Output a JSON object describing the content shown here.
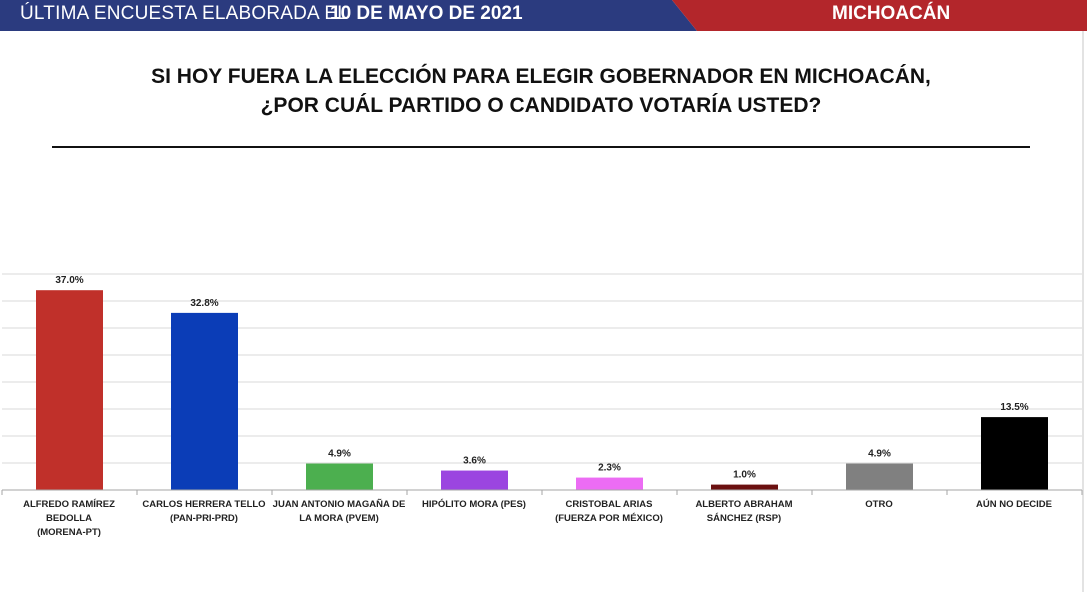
{
  "banner": {
    "label": "ÚLTIMA ENCUESTA ELABORADA EL",
    "date": "10 DE MAYO DE 2021",
    "region": "MICHOACÁN",
    "colors": {
      "blue": "#2b3b7f",
      "red": "#b3262b"
    }
  },
  "title": {
    "line1": "SI HOY FUERA LA ELECCIÓN PARA ELEGIR GOBERNADOR EN MICHOACÁN,",
    "line2": "¿POR CUÁL PARTIDO O CANDIDATO VOTARÍA USTED?"
  },
  "chart_data": {
    "type": "bar",
    "title": "SI HOY FUERA LA ELECCIÓN PARA ELEGIR GOBERNADOR EN MICHOACÁN, ¿POR CUÁL PARTIDO O CANDIDATO VOTARÍA USTED?",
    "categories": [
      {
        "line1": "ALFREDO RAMÍREZ BEDOLLA",
        "line2": "(MORENA-PT)"
      },
      {
        "line1": "CARLOS HERRERA TELLO",
        "line2": "(PAN-PRI-PRD)"
      },
      {
        "line1": "JUAN ANTONIO MAGAÑA DE",
        "line2": "LA MORA (PVEM)"
      },
      {
        "line1": "HIPÓLITO MORA (PES)",
        "line2": ""
      },
      {
        "line1": "CRISTOBAL ARIAS",
        "line2": "(FUERZA POR MÉXICO)"
      },
      {
        "line1": "ALBERTO ABRAHAM",
        "line2": "SÁNCHEZ (RSP)"
      },
      {
        "line1": "OTRO",
        "line2": ""
      },
      {
        "line1": "AÚN NO DECIDE",
        "line2": ""
      }
    ],
    "values": [
      37.0,
      32.8,
      4.9,
      3.6,
      2.3,
      1.0,
      4.9,
      13.5
    ],
    "value_labels": [
      "37.0%",
      "32.8%",
      "4.9%",
      "3.6%",
      "2.3%",
      "1.0%",
      "4.9%",
      "13.5%"
    ],
    "colors": [
      "#c0302a",
      "#0b3db7",
      "#4caf4f",
      "#9b45e0",
      "#ec6cf4",
      "#6b1010",
      "#808080",
      "#000000"
    ],
    "xlabel": "",
    "ylabel": "",
    "ylim": [
      0,
      40
    ],
    "grid": true,
    "legend": "none"
  }
}
